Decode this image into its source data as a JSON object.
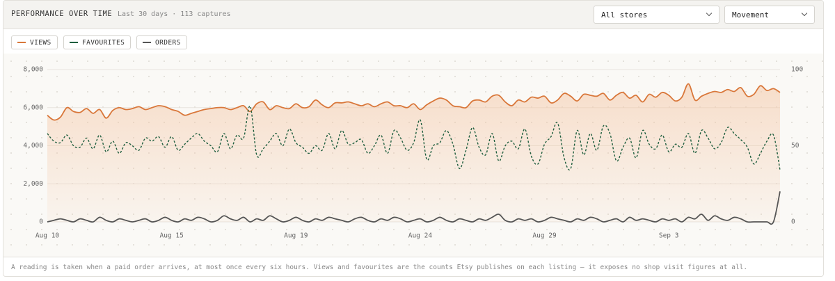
{
  "header": {
    "title": "PERFORMANCE OVER TIME",
    "subtitle": "Last 30 days · 113 captures",
    "controls": [
      "All stores",
      "Movement"
    ]
  },
  "footnote": "A reading is taken when a paid order arrives, at most once every six hours. Views and favourites are the counts Etsy publishes on each listing — it exposes no shop visit figures at all.",
  "chart_data": {
    "type": "line",
    "categories": [
      "Aug 10",
      null,
      null,
      null,
      null,
      null,
      null,
      null,
      null,
      null,
      null,
      null,
      null,
      null,
      null,
      null,
      null,
      null,
      null,
      "Aug 15",
      null,
      null,
      null,
      null,
      null,
      null,
      null,
      null,
      null,
      null,
      null,
      null,
      null,
      null,
      null,
      null,
      null,
      null,
      "Aug 19",
      null,
      null,
      null,
      null,
      null,
      null,
      null,
      null,
      null,
      null,
      null,
      null,
      null,
      null,
      null,
      null,
      null,
      null,
      "Aug 24",
      null,
      null,
      null,
      null,
      null,
      null,
      null,
      null,
      null,
      null,
      null,
      null,
      null,
      null,
      null,
      null,
      null,
      null,
      "Aug 29",
      null,
      null,
      null,
      null,
      null,
      null,
      null,
      null,
      null,
      null,
      null,
      null,
      null,
      null,
      null,
      null,
      null,
      null,
      "Sep 3",
      null,
      null,
      null,
      null,
      null,
      null,
      null,
      null,
      null,
      null,
      null,
      null,
      null,
      null,
      null,
      null,
      null
    ],
    "ylim": [
      0,
      8000
    ],
    "yticks": [
      0,
      {
        "value": 2000,
        "label": "2,000"
      },
      {
        "value": 4000,
        "label": "4,000"
      },
      {
        "value": 6000,
        "label": "6,000"
      },
      {
        "value": 8000,
        "label": "8,000"
      }
    ],
    "y2lim": [
      0,
      100
    ],
    "y2ticks": [
      0,
      50,
      100
    ],
    "grid": true,
    "series": [
      {
        "name": "VIEWS",
        "color": "#d9773a",
        "area": true,
        "style": "solid",
        "values": [
          5600,
          5350,
          5500,
          6000,
          5800,
          5750,
          5950,
          5700,
          5900,
          5450,
          5850,
          6000,
          5900,
          5950,
          6050,
          5900,
          6000,
          6100,
          6050,
          5900,
          5800,
          5600,
          5700,
          5800,
          5900,
          5950,
          6000,
          6000,
          5900,
          6000,
          6100,
          5800,
          6200,
          6300,
          5900,
          6100,
          6000,
          5950,
          6200,
          6000,
          6050,
          6400,
          6150,
          6000,
          6250,
          6250,
          6300,
          6200,
          6100,
          6200,
          6050,
          6200,
          6300,
          6100,
          6100,
          6000,
          6200,
          5900,
          6150,
          6350,
          6500,
          6400,
          6100,
          6050,
          6000,
          6350,
          6400,
          6300,
          6600,
          6650,
          6300,
          6100,
          6400,
          6300,
          6550,
          6500,
          6600,
          6250,
          6400,
          6750,
          6600,
          6350,
          6700,
          6650,
          6600,
          6750,
          6400,
          6650,
          6800,
          6500,
          6650,
          6300,
          6700,
          6550,
          6800,
          6650,
          6350,
          6550,
          7250,
          6400,
          6600,
          6750,
          6850,
          6800,
          6950,
          6850,
          7050,
          6600,
          6700,
          7150,
          6900,
          7000,
          6800
        ]
      },
      {
        "name": "FAVOURITES",
        "color": "#1e5e3e",
        "axis": "y2",
        "style": "dashed",
        "values": [
          58,
          53,
          52,
          57,
          50,
          49,
          55,
          48,
          57,
          46,
          53,
          45,
          52,
          50,
          47,
          55,
          53,
          56,
          49,
          56,
          47,
          51,
          55,
          58,
          53,
          50,
          46,
          58,
          48,
          57,
          55,
          76,
          44,
          48,
          53,
          58,
          50,
          61,
          52,
          49,
          45,
          50,
          47,
          58,
          48,
          60,
          51,
          52,
          54,
          45,
          50,
          57,
          45,
          60,
          55,
          47,
          52,
          67,
          41,
          50,
          52,
          60,
          51,
          35,
          47,
          62,
          49,
          44,
          58,
          40,
          50,
          53,
          48,
          61,
          43,
          38,
          51,
          56,
          65,
          42,
          35,
          60,
          44,
          58,
          47,
          63,
          58,
          40,
          49,
          55,
          42,
          60,
          51,
          48,
          57,
          46,
          51,
          49,
          58,
          45,
          60,
          55,
          48,
          52,
          62,
          58,
          54,
          49,
          38,
          45,
          53,
          57,
          34
        ]
      },
      {
        "name": "ORDERS",
        "color": "#555555",
        "axis": "y2",
        "style": "solid",
        "values": [
          0,
          1,
          2,
          1,
          0,
          2,
          1,
          0,
          3,
          1,
          0,
          2,
          1,
          0,
          1,
          2,
          0,
          1,
          3,
          1,
          0,
          2,
          1,
          3,
          2,
          0,
          1,
          4,
          2,
          1,
          3,
          0,
          2,
          1,
          4,
          2,
          0,
          1,
          3,
          1,
          0,
          2,
          1,
          3,
          2,
          1,
          0,
          2,
          3,
          1,
          0,
          2,
          1,
          3,
          2,
          0,
          1,
          2,
          0,
          1,
          3,
          1,
          0,
          2,
          1,
          0,
          2,
          1,
          3,
          5,
          1,
          0,
          2,
          1,
          2,
          0,
          1,
          3,
          2,
          1,
          0,
          2,
          1,
          3,
          2,
          0,
          1,
          2,
          0,
          3,
          1,
          2,
          1,
          0,
          2,
          1,
          2,
          0,
          3,
          2,
          5,
          1,
          4,
          2,
          1,
          3,
          2,
          0,
          0,
          0,
          0,
          0,
          20
        ]
      }
    ]
  }
}
